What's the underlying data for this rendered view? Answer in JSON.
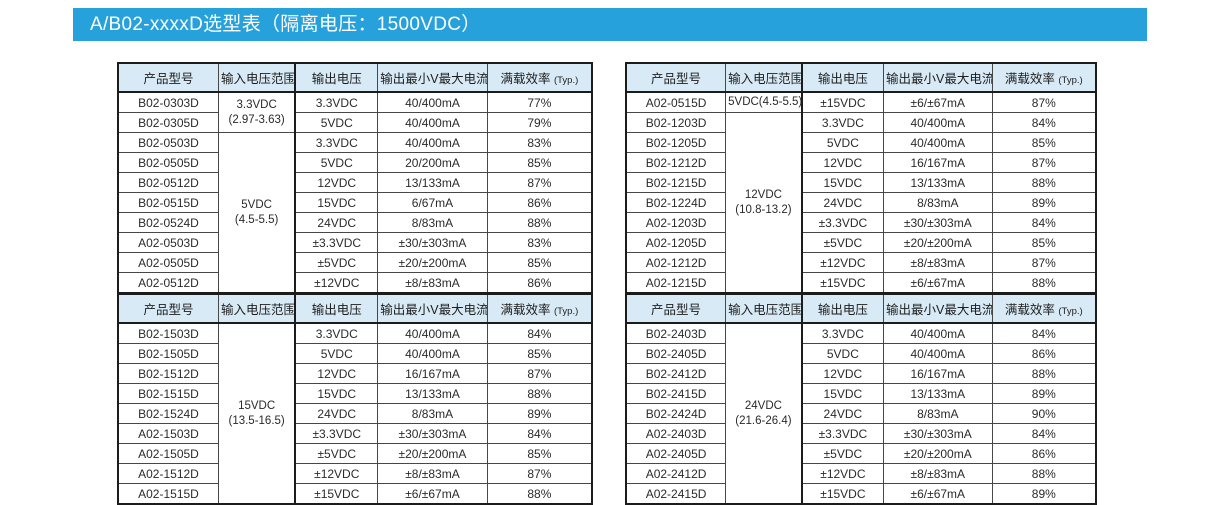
{
  "title_bar": {
    "text": "A/B02-xxxxD选型表（隔离电压：1500VDC）"
  },
  "colors": {
    "accent_blue": "#27a1db",
    "title_text": "#ffffff",
    "table_header_bg": "#d8eaf6",
    "table_border": "#1c1c1c"
  },
  "columns": [
    "产品型号",
    "输入电压范围",
    "输出电压",
    "输出最小V最大电流",
    "满载效率"
  ],
  "efficiency_suffix": "(Typ.)",
  "tables": [
    {
      "input_groups": [
        {
          "start": 0,
          "span": 2,
          "lines": [
            "3.3VDC",
            "(2.97-3.63)"
          ]
        },
        {
          "start": 2,
          "span": 8,
          "lines": [
            "5VDC",
            "(4.5-5.5)"
          ]
        }
      ],
      "rows": [
        {
          "model": "B02-0303D",
          "vout": "3.3VDC",
          "iout": "40/400mA",
          "eff": "77%"
        },
        {
          "model": "B02-0305D",
          "vout": "5VDC",
          "iout": "40/400mA",
          "eff": "79%"
        },
        {
          "model": "B02-0503D",
          "vout": "3.3VDC",
          "iout": "40/400mA",
          "eff": "83%"
        },
        {
          "model": "B02-0505D",
          "vout": "5VDC",
          "iout": "20/200mA",
          "eff": "85%"
        },
        {
          "model": "B02-0512D",
          "vout": "12VDC",
          "iout": "13/133mA",
          "eff": "87%"
        },
        {
          "model": "B02-0515D",
          "vout": "15VDC",
          "iout": "6/67mA",
          "eff": "86%"
        },
        {
          "model": "B02-0524D",
          "vout": "24VDC",
          "iout": "8/83mA",
          "eff": "88%"
        },
        {
          "model": "A02-0503D",
          "vout": "±3.3VDC",
          "iout": "±30/±303mA",
          "eff": "83%"
        },
        {
          "model": "A02-0505D",
          "vout": "±5VDC",
          "iout": "±20/±200mA",
          "eff": "85%"
        },
        {
          "model": "A02-0512D",
          "vout": "±12VDC",
          "iout": "±8/±83mA",
          "eff": "86%"
        }
      ]
    },
    {
      "input_groups": [
        {
          "start": 0,
          "span": 1,
          "lines": [
            "5VDC(4.5-5.5)"
          ]
        },
        {
          "start": 1,
          "span": 9,
          "lines": [
            "12VDC",
            "(10.8-13.2)"
          ]
        }
      ],
      "rows": [
        {
          "model": "A02-0515D",
          "vout": "±15VDC",
          "iout": "±6/±67mA",
          "eff": "87%"
        },
        {
          "model": "B02-1203D",
          "vout": "3.3VDC",
          "iout": "40/400mA",
          "eff": "84%"
        },
        {
          "model": "B02-1205D",
          "vout": "5VDC",
          "iout": "40/400mA",
          "eff": "85%"
        },
        {
          "model": "B02-1212D",
          "vout": "12VDC",
          "iout": "16/167mA",
          "eff": "87%"
        },
        {
          "model": "B02-1215D",
          "vout": "15VDC",
          "iout": "13/133mA",
          "eff": "88%"
        },
        {
          "model": "B02-1224D",
          "vout": "24VDC",
          "iout": "8/83mA",
          "eff": "89%"
        },
        {
          "model": "A02-1203D",
          "vout": "±3.3VDC",
          "iout": "±30/±303mA",
          "eff": "84%"
        },
        {
          "model": "A02-1205D",
          "vout": "±5VDC",
          "iout": "±20/±200mA",
          "eff": "85%"
        },
        {
          "model": "A02-1212D",
          "vout": "±12VDC",
          "iout": "±8/±83mA",
          "eff": "87%"
        },
        {
          "model": "A02-1215D",
          "vout": "±15VDC",
          "iout": "±6/±67mA",
          "eff": "88%"
        }
      ]
    },
    {
      "input_groups": [
        {
          "start": 0,
          "span": 9,
          "lines": [
            "15VDC",
            "(13.5-16.5)"
          ]
        }
      ],
      "rows": [
        {
          "model": "B02-1503D",
          "vout": "3.3VDC",
          "iout": "40/400mA",
          "eff": "84%"
        },
        {
          "model": "B02-1505D",
          "vout": "5VDC",
          "iout": "40/400mA",
          "eff": "85%"
        },
        {
          "model": "B02-1512D",
          "vout": "12VDC",
          "iout": "16/167mA",
          "eff": "87%"
        },
        {
          "model": "B02-1515D",
          "vout": "15VDC",
          "iout": "13/133mA",
          "eff": "88%"
        },
        {
          "model": "B02-1524D",
          "vout": "24VDC",
          "iout": "8/83mA",
          "eff": "89%"
        },
        {
          "model": "A02-1503D",
          "vout": "±3.3VDC",
          "iout": "±30/±303mA",
          "eff": "84%"
        },
        {
          "model": "A02-1505D",
          "vout": "±5VDC",
          "iout": "±20/±200mA",
          "eff": "85%"
        },
        {
          "model": "A02-1512D",
          "vout": "±12VDC",
          "iout": "±8/±83mA",
          "eff": "87%"
        },
        {
          "model": "A02-1515D",
          "vout": "±15VDC",
          "iout": "±6/±67mA",
          "eff": "88%"
        }
      ]
    },
    {
      "input_groups": [
        {
          "start": 0,
          "span": 9,
          "lines": [
            "24VDC",
            "(21.6-26.4)"
          ]
        }
      ],
      "rows": [
        {
          "model": "B02-2403D",
          "vout": "3.3VDC",
          "iout": "40/400mA",
          "eff": "84%"
        },
        {
          "model": "B02-2405D",
          "vout": "5VDC",
          "iout": "40/400mA",
          "eff": "86%"
        },
        {
          "model": "B02-2412D",
          "vout": "12VDC",
          "iout": "16/167mA",
          "eff": "88%"
        },
        {
          "model": "B02-2415D",
          "vout": "15VDC",
          "iout": "13/133mA",
          "eff": "89%"
        },
        {
          "model": "B02-2424D",
          "vout": "24VDC",
          "iout": "8/83mA",
          "eff": "90%"
        },
        {
          "model": "A02-2403D",
          "vout": "±3.3VDC",
          "iout": "±30/±303mA",
          "eff": "84%"
        },
        {
          "model": "A02-2405D",
          "vout": "±5VDC",
          "iout": "±20/±200mA",
          "eff": "86%"
        },
        {
          "model": "A02-2412D",
          "vout": "±12VDC",
          "iout": "±8/±83mA",
          "eff": "88%"
        },
        {
          "model": "A02-2415D",
          "vout": "±15VDC",
          "iout": "±6/±67mA",
          "eff": "89%"
        }
      ]
    }
  ]
}
